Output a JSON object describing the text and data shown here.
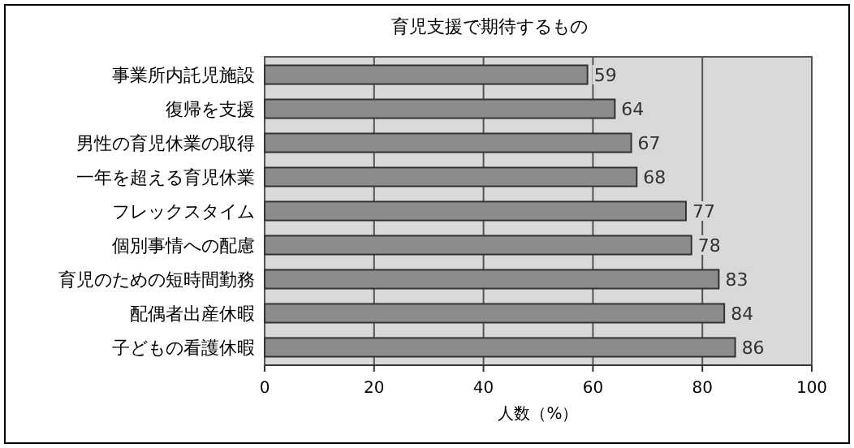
{
  "chart_data": {
    "type": "bar",
    "orientation": "horizontal",
    "title": "育児支援で期待するもの",
    "xlabel": "人数（%）",
    "categories": [
      "事業所内託児施設",
      "復帰を支援",
      "男性の育児休業の取得",
      "一年を超える育児休業",
      "フレックスタイム",
      "個別事情への配慮",
      "育児のための短時間勤務",
      "配偶者出産休暇",
      "子どもの看護休暇"
    ],
    "values": [
      59,
      64,
      67,
      68,
      77,
      78,
      83,
      84,
      86
    ],
    "color": "#8c8c8c",
    "xlim": [
      0,
      100
    ],
    "xticks": [
      0,
      20,
      40,
      60,
      80,
      100
    ],
    "grid": "x",
    "data_labels": true
  }
}
